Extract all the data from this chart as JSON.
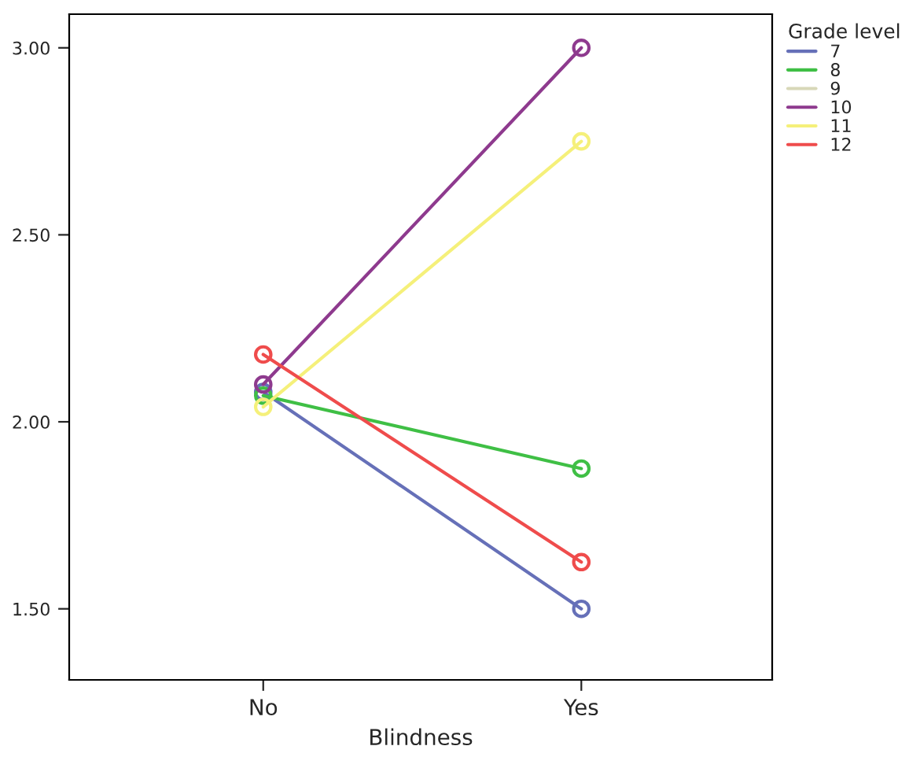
{
  "chart_data": {
    "type": "line",
    "xlabel": "Blindness",
    "legend_title": "Grade level",
    "categories": [
      "No",
      "Yes"
    ],
    "series": [
      {
        "name": "7",
        "color": "#6670b8",
        "values": [
          2.08,
          1.5
        ]
      },
      {
        "name": "8",
        "color": "#3fbf45",
        "values": [
          2.07,
          1.875
        ]
      },
      {
        "name": "9",
        "color": "#d8d8b8",
        "values": [
          null,
          null
        ]
      },
      {
        "name": "10",
        "color": "#8e3a8e",
        "values": [
          2.1,
          3.0
        ]
      },
      {
        "name": "11",
        "color": "#f5f07a",
        "values": [
          2.04,
          2.75
        ]
      },
      {
        "name": "12",
        "color": "#ef4c4c",
        "values": [
          2.18,
          1.625
        ]
      }
    ],
    "ylim": [
      1.31,
      3.09
    ],
    "yticks": [
      {
        "value": 1.5,
        "label": "1.50"
      },
      {
        "value": 2.0,
        "label": "2.00"
      },
      {
        "value": 2.5,
        "label": "2.50"
      },
      {
        "value": 3.0,
        "label": "3.00"
      }
    ],
    "grid": false,
    "legend": "top right",
    "marker": "circle",
    "line_style": "solid"
  }
}
